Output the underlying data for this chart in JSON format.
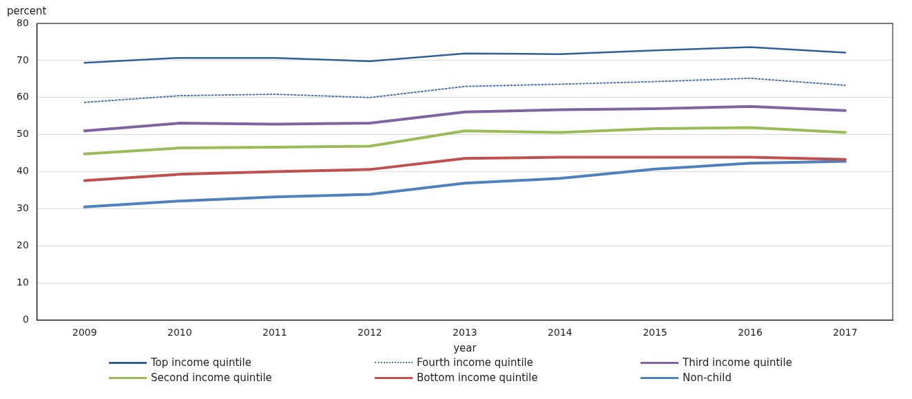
{
  "chart_data": {
    "type": "line",
    "ylabel": "percent",
    "xlabel": "year",
    "categories": [
      "2009",
      "2010",
      "2011",
      "2012",
      "2013",
      "2014",
      "2015",
      "2016",
      "2017"
    ],
    "ylim": [
      0,
      80
    ],
    "yticks": [
      0,
      10,
      20,
      30,
      40,
      50,
      60,
      70,
      80
    ],
    "grid": "y",
    "legend": "bottom",
    "marker": "none",
    "series": [
      {
        "name": "Top income quintile",
        "color": "#2f5f98",
        "values": [
          69.4,
          70.7,
          70.7,
          69.8,
          71.9,
          71.7,
          72.7,
          73.6,
          72.1
        ]
      },
      {
        "name": "Fourth income quintile",
        "color": "#4a72a8",
        "line_style": "dotted",
        "values": [
          58.7,
          60.5,
          60.9,
          60.0,
          63.0,
          63.6,
          64.3,
          65.2,
          63.3
        ]
      },
      {
        "name": "Third income quintile",
        "color": "#8064a2",
        "values": [
          51.0,
          53.1,
          52.8,
          53.1,
          56.1,
          56.7,
          57.0,
          57.6,
          56.5
        ]
      },
      {
        "name": "Second income quintile",
        "color": "#9bbb59",
        "values": [
          44.8,
          46.4,
          46.6,
          46.9,
          51.0,
          50.6,
          51.6,
          51.9,
          50.6
        ]
      },
      {
        "name": "Bottom income quintile",
        "color": "#c0504d",
        "values": [
          37.6,
          39.3,
          40.0,
          40.6,
          43.6,
          43.9,
          43.9,
          43.9,
          43.3
        ]
      },
      {
        "name": "Non-child",
        "color": "#4f81bd",
        "values": [
          30.5,
          32.1,
          33.2,
          33.9,
          36.9,
          38.2,
          40.7,
          42.3,
          42.8
        ]
      }
    ]
  }
}
